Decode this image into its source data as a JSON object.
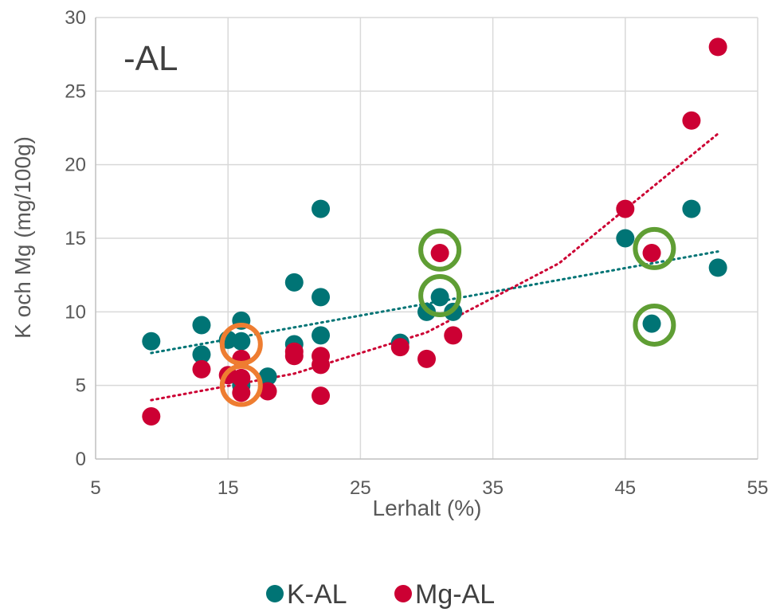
{
  "chart_data": {
    "type": "scatter",
    "title": "",
    "annotation": "-AL",
    "xlabel": "Lerhalt (%)",
    "ylabel": "K och Mg (mg/100g)",
    "xlim": [
      5,
      55
    ],
    "ylim": [
      0,
      30
    ],
    "xticks": [
      5,
      15,
      25,
      35,
      45,
      55
    ],
    "yticks": [
      0,
      5,
      10,
      15,
      20,
      25,
      30
    ],
    "grid": true,
    "legend_position": "bottom",
    "series": [
      {
        "name": "K-AL",
        "color": "#007475",
        "trendline": "linear",
        "trendline_points": [
          [
            9.2,
            7.2
          ],
          [
            52,
            14.1
          ]
        ],
        "points": [
          [
            9.2,
            8.0
          ],
          [
            13,
            9.1
          ],
          [
            13,
            7.1
          ],
          [
            15,
            8.1
          ],
          [
            16,
            9.4
          ],
          [
            16,
            8.0
          ],
          [
            16,
            5.0
          ],
          [
            18,
            5.6
          ],
          [
            20,
            12.0
          ],
          [
            20,
            7.8
          ],
          [
            22,
            17.0
          ],
          [
            22,
            11.0
          ],
          [
            22,
            8.4
          ],
          [
            28,
            7.9
          ],
          [
            30,
            10.0
          ],
          [
            31,
            11.0
          ],
          [
            32,
            10.0
          ],
          [
            45,
            15.0
          ],
          [
            47,
            9.2
          ],
          [
            50,
            17.0
          ],
          [
            52,
            13.0
          ]
        ]
      },
      {
        "name": "Mg-AL",
        "color": "#cc0033",
        "trendline": "exponential",
        "trendline_points": [
          [
            9.2,
            4.0
          ],
          [
            20,
            5.8
          ],
          [
            30,
            8.6
          ],
          [
            40,
            13.3
          ],
          [
            52,
            22.1
          ]
        ],
        "points": [
          [
            9.2,
            2.9
          ],
          [
            13,
            6.1
          ],
          [
            15,
            5.7
          ],
          [
            16,
            6.8
          ],
          [
            16,
            5.5
          ],
          [
            16,
            4.5
          ],
          [
            18,
            4.6
          ],
          [
            20,
            7.3
          ],
          [
            20,
            7.0
          ],
          [
            22,
            7.0
          ],
          [
            22,
            6.4
          ],
          [
            22,
            4.3
          ],
          [
            28,
            7.6
          ],
          [
            30,
            6.8
          ],
          [
            31,
            14.0
          ],
          [
            32,
            8.4
          ],
          [
            45,
            17.0
          ],
          [
            47,
            14.0
          ],
          [
            50,
            23.0
          ],
          [
            52,
            28.0
          ]
        ]
      }
    ],
    "highlight_circles": [
      {
        "color": "#ee7d31",
        "x": 16.0,
        "y": 7.8
      },
      {
        "color": "#ee7d31",
        "x": 16.0,
        "y": 5.0
      },
      {
        "color": "#5f9e34",
        "x": 31.0,
        "y": 14.2
      },
      {
        "color": "#5f9e34",
        "x": 31.0,
        "y": 11.1
      },
      {
        "color": "#5f9e34",
        "x": 47.2,
        "y": 14.3
      },
      {
        "color": "#5f9e34",
        "x": 47.2,
        "y": 9.1
      }
    ]
  }
}
